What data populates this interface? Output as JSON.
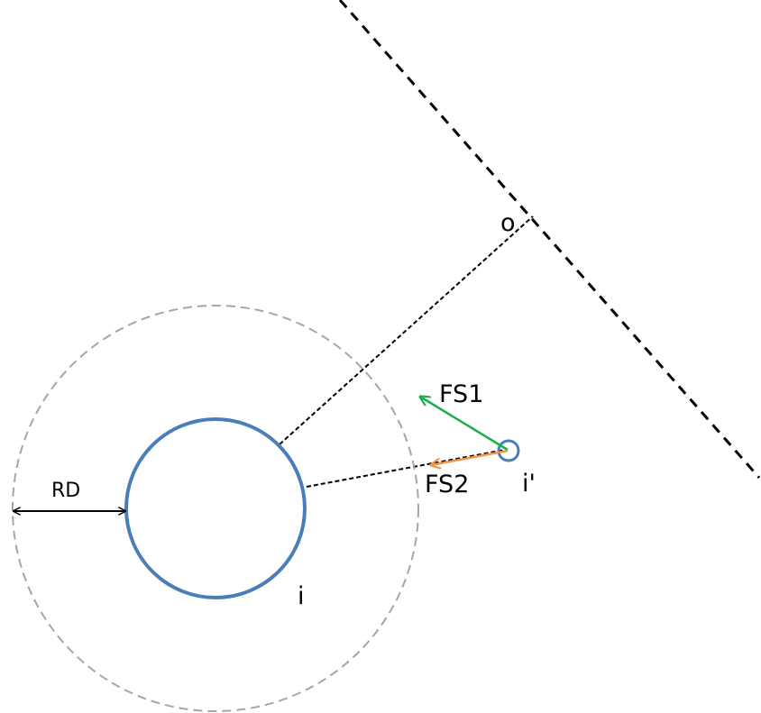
{
  "labels": {
    "point_o": "o",
    "force_1": "FS1",
    "force_2": "FS2",
    "agent_i_prime": "i'",
    "agent_i": "i",
    "radius": "RD"
  },
  "colors": {
    "agent_circle": "#4a7ebb",
    "influence_circle": "#a6a6a6",
    "force_1_arrow": "#1aae4a",
    "force_2_arrow": "#f29444",
    "lines": "#000000"
  }
}
